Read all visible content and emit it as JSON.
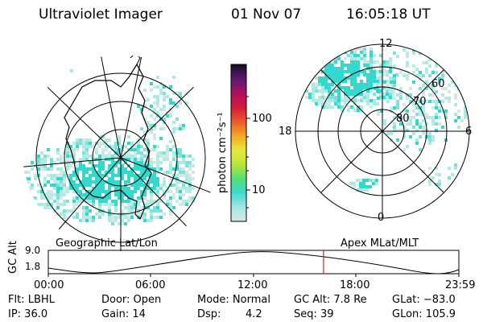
{
  "header": {
    "instrument": "Ultraviolet Imager",
    "date": "01 Nov 07",
    "time": "16:05:18 UT"
  },
  "colors": {
    "aurora_cyan": "#33d9cc",
    "aurora_light": "#a8ece4",
    "marker_red": "#cc2222"
  },
  "colorbar": {
    "label": "photon cm⁻²s⁻¹",
    "ticks": [
      "100",
      "10"
    ],
    "stops": [
      "#d9e8e6",
      "#a6e6e2",
      "#3ed9d2",
      "#52e07a",
      "#b8e63a",
      "#e8e83a",
      "#f5a623",
      "#e85a2a",
      "#d41a3a",
      "#b01060",
      "#5a1a70",
      "#1a0a2a"
    ]
  },
  "geo_map": {
    "label": "Geographic Lat/Lon"
  },
  "polar_map": {
    "label": "Apex MLat/MLT",
    "mlt_labels": [
      "12",
      "6",
      "0",
      "18"
    ],
    "lat_labels": [
      "60",
      "70",
      "80"
    ]
  },
  "altitude_plot": {
    "ylabel": "GC Alt",
    "yticks": [
      "9.0",
      "1.8"
    ],
    "xticks": [
      "00:00",
      "06:00",
      "12:00",
      "18:00",
      "23:59"
    ],
    "current_time_hours": 16.09
  },
  "status": {
    "filter": "Flt: LBHL",
    "ip": "IP: 36.0",
    "door": "Door: Open",
    "gain": "Gain: 14",
    "mode": "Mode: Normal",
    "dsp_label": "Dsp:",
    "dsp_value": "4.2",
    "gc_alt": "GC Alt: 7.8 Re",
    "seq": "Seq: 39",
    "glat": "GLat: −83.0",
    "glon": "GLon: 105.9"
  }
}
